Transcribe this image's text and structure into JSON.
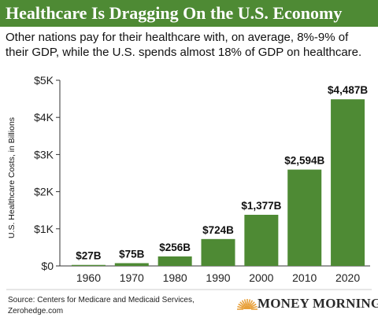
{
  "title": "Healthcare Is Dragging On the U.S. Economy",
  "subtitle": "Other nations pay for their healthcare with, on average, 8%-9% of their GDP, while the U.S. spends almost 18% of GDP on healthcare.",
  "source": "Source: Centers for Medicare and Medicaid Services, Zerohedge.com",
  "logo_text": "MONEY MORNING",
  "colors": {
    "accent": "#4e8a34",
    "bar": "#4e8a34",
    "logo_sun": "#e8a03a"
  },
  "chart_data": {
    "type": "bar",
    "categories": [
      "1960",
      "1970",
      "1980",
      "1990",
      "2000",
      "2010",
      "2020"
    ],
    "values": [
      27,
      75,
      256,
      724,
      1377,
      2594,
      4487
    ],
    "data_labels": [
      "$27B",
      "$75B",
      "$256B",
      "$724B",
      "$1,377B",
      "$2,594B",
      "$4,487B"
    ],
    "ylabel": "U.S. Healthcare Costs, in Billions",
    "xlabel": "",
    "ylim": [
      0,
      5000
    ],
    "yticks": [
      0,
      1000,
      2000,
      3000,
      4000,
      5000
    ],
    "ytick_labels": [
      "$0",
      "$1K",
      "$2K",
      "$3K",
      "$4K",
      "$5K"
    ],
    "grid": false
  }
}
